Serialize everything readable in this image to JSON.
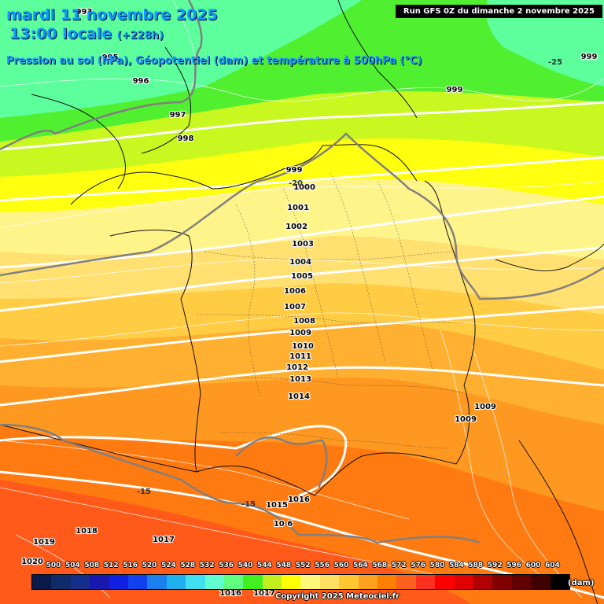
{
  "header": {
    "date_line": "mardi 11 novembre 2025",
    "time_line": "13:00 locale",
    "lead_time": "(+228h)",
    "subtitle": "Pression au sol (hPa), Géopotentiel (dam) et température à 500hPa (°C)",
    "run_info": "Run GFS 0Z du dimanche 2 novembre 2025"
  },
  "pressure_labels": [
    {
      "text": "993"
    },
    {
      "text": "995"
    },
    {
      "text": "996"
    },
    {
      "text": "997"
    },
    {
      "text": "998"
    },
    {
      "text": "999"
    },
    {
      "text": "999"
    },
    {
      "text": "999"
    },
    {
      "text": "1000"
    },
    {
      "text": "1001"
    },
    {
      "text": "1002"
    },
    {
      "text": "1003"
    },
    {
      "text": "1004"
    },
    {
      "text": "1005"
    },
    {
      "text": "1006"
    },
    {
      "text": "1007"
    },
    {
      "text": "1008"
    },
    {
      "text": "1009"
    },
    {
      "text": "1010"
    },
    {
      "text": "1011"
    },
    {
      "text": "1012"
    },
    {
      "text": "1013"
    },
    {
      "text": "1014"
    },
    {
      "text": "1009"
    },
    {
      "text": "1009"
    },
    {
      "text": "1015"
    },
    {
      "text": "1016"
    },
    {
      "text": "10 6"
    },
    {
      "text": "1017"
    },
    {
      "text": "1018"
    },
    {
      "text": "1019"
    },
    {
      "text": "1020"
    },
    {
      "text": "1016"
    },
    {
      "text": "1017"
    }
  ],
  "temperature_labels": [
    {
      "text": "-25"
    },
    {
      "text": "-20"
    },
    {
      "text": "-15"
    },
    {
      "text": "-15"
    }
  ],
  "legend": {
    "unit": "(dam)",
    "ticks": [
      "500",
      "504",
      "508",
      "512",
      "516",
      "520",
      "524",
      "528",
      "532",
      "536",
      "540",
      "544",
      "548",
      "552",
      "556",
      "560",
      "564",
      "568",
      "572",
      "576",
      "580",
      "584",
      "588",
      "592",
      "596",
      "600",
      "604"
    ],
    "colors": [
      "#0a1a4a",
      "#102a6a",
      "#14308a",
      "#1818b0",
      "#1020e0",
      "#1040f0",
      "#1a80f0",
      "#20b0f0",
      "#40e0f0",
      "#60ffd0",
      "#60ff80",
      "#40f020",
      "#c0f020",
      "#ffff00",
      "#fff878",
      "#ffe060",
      "#ffc830",
      "#ffa020",
      "#ff8000",
      "#ff6020",
      "#ff3020",
      "#ff0000",
      "#e00000",
      "#b00000",
      "#800000",
      "#600000",
      "#400000",
      "#000000"
    ]
  },
  "copyright": "Copyright 2025 Meteociel.fr"
}
